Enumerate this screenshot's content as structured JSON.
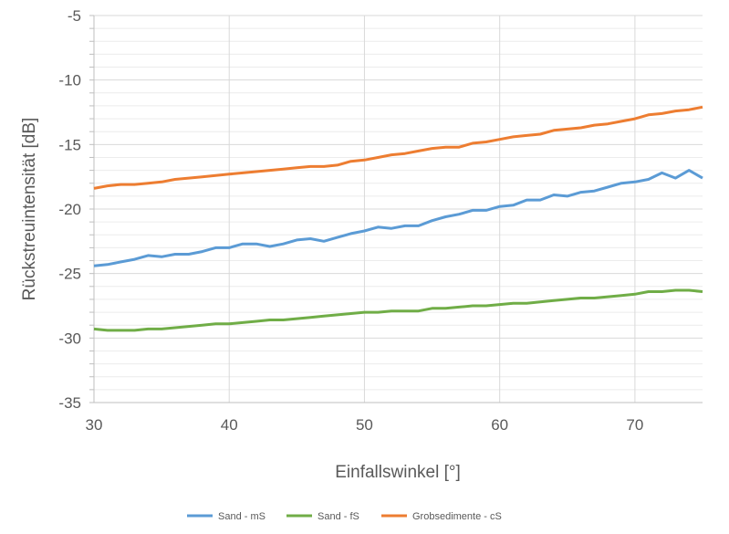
{
  "chart_data": {
    "type": "line",
    "title": "",
    "xlabel": "Einfallswinkel [°]",
    "ylabel": "Rückstreuintensität [dB]",
    "xlim": [
      30,
      75
    ],
    "ylim": [
      -35,
      -5
    ],
    "xticks": [
      30,
      40,
      50,
      60,
      70
    ],
    "yticks": [
      -5,
      -10,
      -15,
      -20,
      -25,
      -30,
      -35
    ],
    "grid": "major vertical every 10, horizontal every 1 dB",
    "legend_position": "bottom",
    "x": [
      30,
      31,
      32,
      33,
      34,
      35,
      36,
      37,
      38,
      39,
      40,
      41,
      42,
      43,
      44,
      45,
      46,
      47,
      48,
      49,
      50,
      51,
      52,
      53,
      54,
      55,
      56,
      57,
      58,
      59,
      60,
      61,
      62,
      63,
      64,
      65,
      66,
      67,
      68,
      69,
      70,
      71,
      72,
      73,
      74,
      75
    ],
    "series": [
      {
        "name": "Sand - mS",
        "color": "#5b9bd5",
        "values": [
          -24.4,
          -24.3,
          -24.1,
          -23.9,
          -23.6,
          -23.7,
          -23.5,
          -23.5,
          -23.3,
          -23.0,
          -23.0,
          -22.7,
          -22.7,
          -22.9,
          -22.7,
          -22.4,
          -22.3,
          -22.5,
          -22.2,
          -21.9,
          -21.7,
          -21.4,
          -21.5,
          -21.3,
          -21.3,
          -20.9,
          -20.6,
          -20.4,
          -20.1,
          -20.1,
          -19.8,
          -19.7,
          -19.3,
          -19.3,
          -18.9,
          -19.0,
          -18.7,
          -18.6,
          -18.3,
          -18.0,
          -17.9,
          -17.7,
          -17.2,
          -17.6,
          -17.0,
          -17.6
        ]
      },
      {
        "name": "Sand - fS",
        "color": "#70ad47",
        "values": [
          -29.3,
          -29.4,
          -29.4,
          -29.4,
          -29.3,
          -29.3,
          -29.2,
          -29.1,
          -29.0,
          -28.9,
          -28.9,
          -28.8,
          -28.7,
          -28.6,
          -28.6,
          -28.5,
          -28.4,
          -28.3,
          -28.2,
          -28.1,
          -28.0,
          -28.0,
          -27.9,
          -27.9,
          -27.9,
          -27.7,
          -27.7,
          -27.6,
          -27.5,
          -27.5,
          -27.4,
          -27.3,
          -27.3,
          -27.2,
          -27.1,
          -27.0,
          -26.9,
          -26.9,
          -26.8,
          -26.7,
          -26.6,
          -26.4,
          -26.4,
          -26.3,
          -26.3,
          -26.4
        ]
      },
      {
        "name": "Grobsedimente - cS",
        "color": "#ed7d31",
        "values": [
          -18.4,
          -18.2,
          -18.1,
          -18.1,
          -18.0,
          -17.9,
          -17.7,
          -17.6,
          -17.5,
          -17.4,
          -17.3,
          -17.2,
          -17.1,
          -17.0,
          -16.9,
          -16.8,
          -16.7,
          -16.7,
          -16.6,
          -16.3,
          -16.2,
          -16.0,
          -15.8,
          -15.7,
          -15.5,
          -15.3,
          -15.2,
          -15.2,
          -14.9,
          -14.8,
          -14.6,
          -14.4,
          -14.3,
          -14.2,
          -13.9,
          -13.8,
          -13.7,
          -13.5,
          -13.4,
          -13.2,
          -13.0,
          -12.7,
          -12.6,
          -12.4,
          -12.3,
          -12.1
        ]
      }
    ]
  }
}
